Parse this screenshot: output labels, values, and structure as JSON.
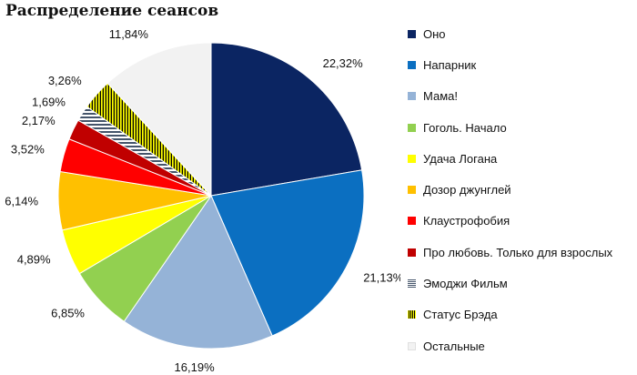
{
  "title": "Распределение сеансов",
  "chart_data": {
    "type": "pie",
    "title": "Распределение сеансов",
    "legend_position": "right",
    "series": [
      {
        "name": "Оно",
        "value": 22.32,
        "label": "22,32%",
        "color": "#0B2562",
        "pattern": "solid"
      },
      {
        "name": "Напарник",
        "value": 21.13,
        "label": "21,13%",
        "color": "#0B6FC1",
        "pattern": "solid"
      },
      {
        "name": "Мама!",
        "value": 16.19,
        "label": "16,19%",
        "color": "#95B3D7",
        "pattern": "solid"
      },
      {
        "name": "Гоголь. Начало",
        "value": 6.85,
        "label": "6,85%",
        "color": "#92D050",
        "pattern": "solid"
      },
      {
        "name": "Удача Логана",
        "value": 4.89,
        "label": "4,89%",
        "color": "#FFFF00",
        "pattern": "solid"
      },
      {
        "name": "Дозор джунглей",
        "value": 6.14,
        "label": "6,14%",
        "color": "#FFC000",
        "pattern": "solid"
      },
      {
        "name": "Клаустрофобия",
        "value": 3.52,
        "label": "3,52%",
        "color": "#FF0000",
        "pattern": "solid"
      },
      {
        "name": "Про любовь. Только для взрослых",
        "value": 2.17,
        "label": "2,17%",
        "color": "#C00000",
        "pattern": "solid"
      },
      {
        "name": "Эмоджи Фильм",
        "value": 1.69,
        "label": "1,69%",
        "color": "#44546A",
        "pattern": "horizontal-stripes"
      },
      {
        "name": "Статус Брэда",
        "value": 3.26,
        "label": "3,26%",
        "color": "#BFBF00",
        "pattern": "vertical-stripes"
      },
      {
        "name": "Остальные",
        "value": 11.84,
        "label": "11,84%",
        "color": "#F2F2F2",
        "pattern": "solid"
      }
    ]
  }
}
